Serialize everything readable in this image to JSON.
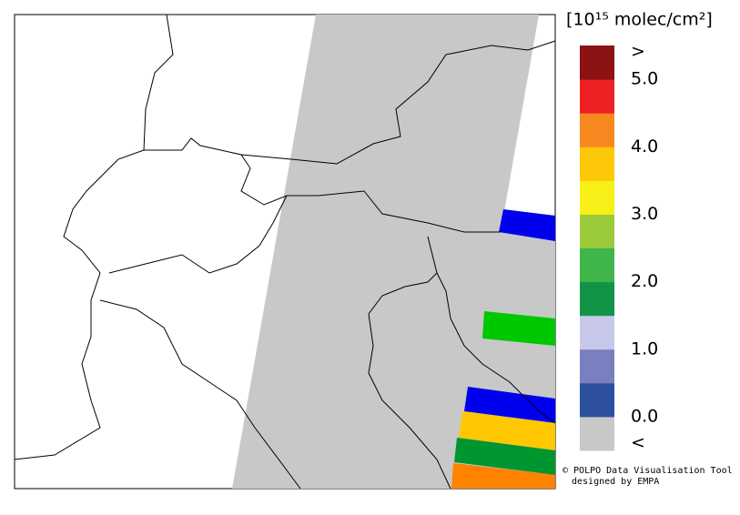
{
  "legend": {
    "unit_label": "[10¹⁵ molec/cm²]",
    "above_label": ">",
    "below_label": "<",
    "colors": [
      "#c8c8c8",
      "#2c4f9e",
      "#7a7fc0",
      "#c8c8ea",
      "#119447",
      "#3fb54a",
      "#9bcb3b",
      "#f6f018",
      "#fdc808",
      "#f7881f",
      "#ed2024",
      "#8b1313"
    ],
    "range": [
      0,
      5
    ],
    "ticks": [
      {
        "value": 0,
        "label": "0.0"
      },
      {
        "value": 1,
        "label": "1.0"
      },
      {
        "value": 2,
        "label": "2.0"
      },
      {
        "value": 3,
        "label": "3.0"
      },
      {
        "value": 4,
        "label": "4.0"
      },
      {
        "value": 5,
        "label": "5.0"
      }
    ]
  },
  "credit": {
    "line1": "© POLPO Data Visualisation Tool",
    "line2": "designed by EMPA"
  }
}
